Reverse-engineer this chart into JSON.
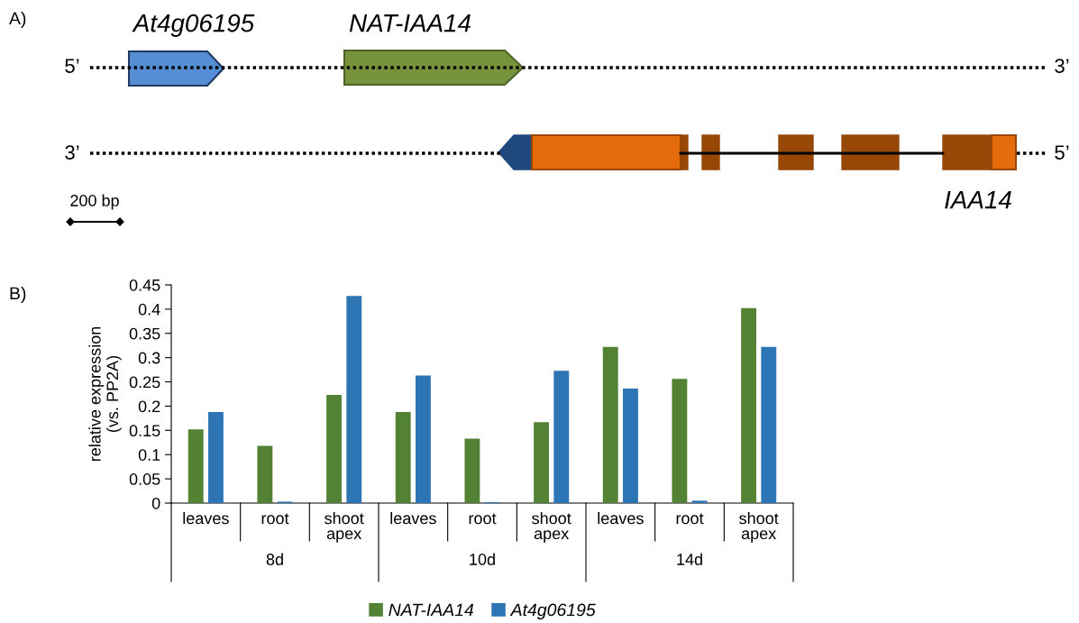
{
  "chart_data": [
    {
      "type": "other",
      "title": "A)",
      "annotations": [
        "At4g06195",
        "NAT-IAA14",
        "5’",
        "3’",
        "3’",
        "5’",
        "IAA14",
        "200 bp"
      ]
    },
    {
      "type": "bar",
      "title": "B)",
      "ylabel": "relative expression\n(vs. PP2A)",
      "categories": [
        "leaves",
        "root",
        "shoot apex",
        "leaves",
        "root",
        "shoot apex",
        "leaves",
        "root",
        "shoot apex"
      ],
      "annotations": [
        "8d",
        "10d",
        "14d"
      ],
      "series": [
        {
          "name": "NAT-IAA14",
          "color": "#548235",
          "values": [
            0.152,
            0.118,
            0.223,
            0.188,
            0.133,
            0.167,
            0.322,
            0.256,
            0.402
          ]
        },
        {
          "name": "At4g06195",
          "color": "#2e75b6",
          "values": [
            0.188,
            0.003,
            0.427,
            0.263,
            0.002,
            0.273,
            0.236,
            0.005,
            0.322
          ]
        }
      ],
      "ylim": [
        0,
        0.45
      ],
      "yticks": [
        0,
        0.05,
        0.1,
        0.15,
        0.2,
        0.25,
        0.3,
        0.35,
        0.4,
        0.45
      ],
      "grid": false,
      "legend": "bottom"
    }
  ]
}
